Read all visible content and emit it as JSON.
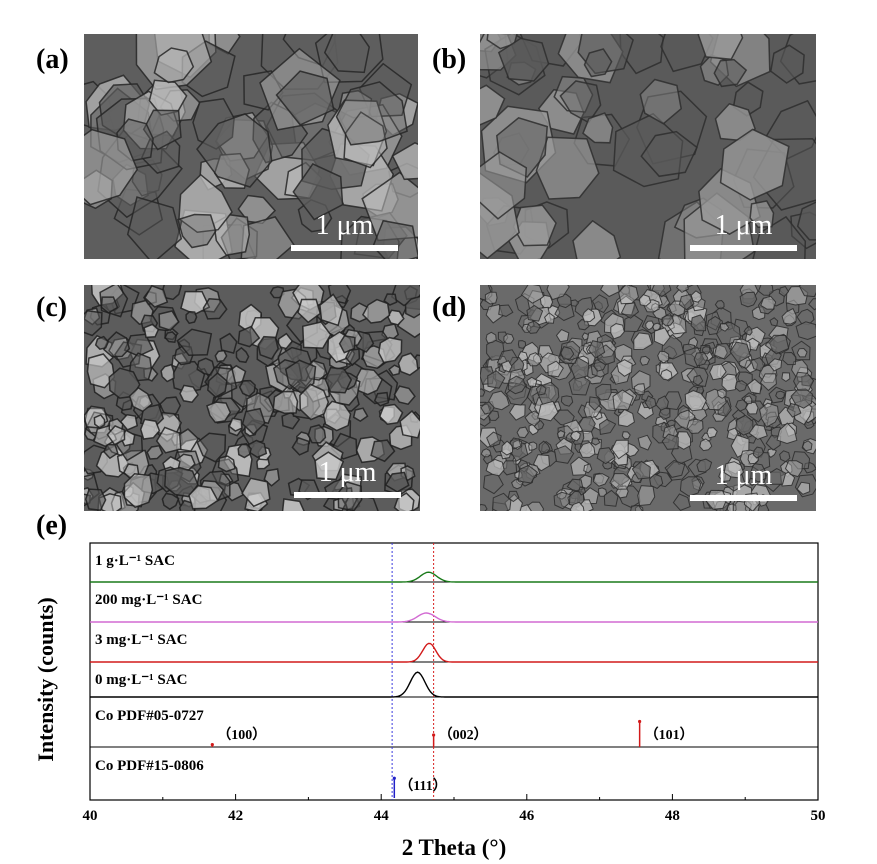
{
  "panels": {
    "a": {
      "label": "(a)",
      "scale": "1 μm",
      "colors": {
        "bg": "#5e5e5e",
        "light": "#b8b8b8",
        "dark": "#262626"
      }
    },
    "b": {
      "label": "(b)",
      "scale": "1 μm",
      "colors": {
        "bg": "#5a5a5a",
        "light": "#9a9a9a",
        "dark": "#2e2e2e"
      }
    },
    "c": {
      "label": "(c)",
      "scale": "1 μm",
      "colors": {
        "bg": "#5c5c5c",
        "light": "#c9c9c9",
        "dark": "#1e1e1e"
      }
    },
    "d": {
      "label": "(d)",
      "scale": "1 μm",
      "colors": {
        "bg": "#6a6a6a",
        "light": "#bdbdbd",
        "dark": "#2c2c2c"
      }
    },
    "e": {
      "label": "(e)"
    }
  },
  "chart_data": {
    "type": "line",
    "xlabel": "2 Theta (°)",
    "ylabel": "Intensity (counts)",
    "xlim": [
      40,
      50
    ],
    "xticks": [
      40,
      42,
      44,
      46,
      48,
      50
    ],
    "reference_lines": [
      {
        "x": 44.15,
        "color": "#3a3adc",
        "style": "dotted"
      },
      {
        "x": 44.72,
        "color": "#d82020",
        "style": "dotted"
      }
    ],
    "series": [
      {
        "name": "1 g·L⁻¹ SAC",
        "color": "#1a7a1a",
        "peak_x": 44.65,
        "peak_height": 0.28,
        "peak_width": 0.11
      },
      {
        "name": "200 mg·L⁻¹ SAC",
        "color": "#d26ad2",
        "peak_x": 44.62,
        "peak_height": 0.25,
        "peak_width": 0.12
      },
      {
        "name": "3 mg·L⁻¹ SAC",
        "color": "#d21a1a",
        "peak_x": 44.66,
        "peak_height": 0.52,
        "peak_width": 0.09
      },
      {
        "name": "0 mg·L⁻¹ SAC",
        "color": "#000000",
        "peak_x": 44.5,
        "peak_height": 0.8,
        "peak_width": 0.1
      }
    ],
    "references": [
      {
        "name": "Co PDF#05-0727",
        "color": "#d21a1a",
        "sticks": [
          {
            "x": 41.68,
            "height": 0.08,
            "label": "（100）"
          },
          {
            "x": 44.72,
            "height": 0.4,
            "label": "（002）"
          },
          {
            "x": 47.55,
            "height": 0.85,
            "label": "（101）"
          }
        ]
      },
      {
        "name": "Co PDF#15-0806",
        "color": "#2020c8",
        "sticks": [
          {
            "x": 44.18,
            "height": 0.6,
            "label": "（111）"
          }
        ]
      }
    ]
  }
}
